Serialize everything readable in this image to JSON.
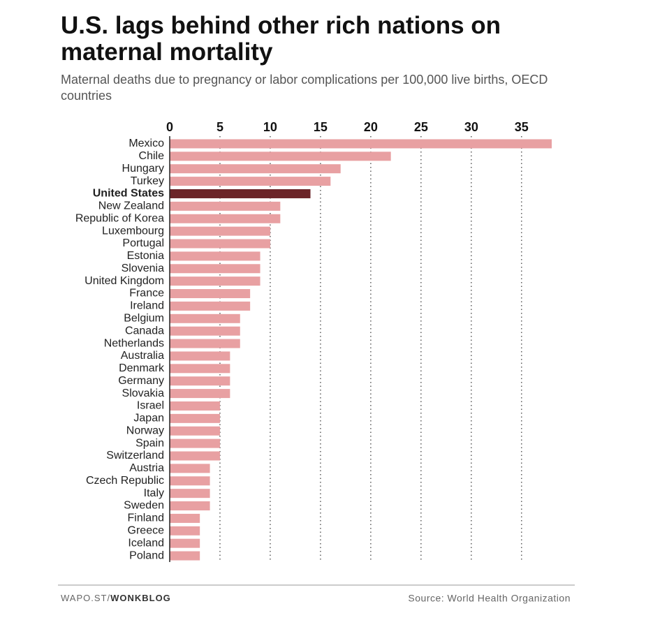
{
  "chart_data": {
    "type": "bar",
    "orientation": "horizontal",
    "title": "U.S. lags behind other rich nations on maternal mortality",
    "subtitle": "Maternal deaths due to pregnancy or labor complications per 100,000 live births, OECD countries",
    "categories": [
      "Mexico",
      "Chile",
      "Hungary",
      "Turkey",
      "United States",
      "New Zealand",
      "Republic of Korea",
      "Luxembourg",
      "Portugal",
      "Estonia",
      "Slovenia",
      "United Kingdom",
      "France",
      "Ireland",
      "Belgium",
      "Canada",
      "Netherlands",
      "Australia",
      "Denmark",
      "Germany",
      "Slovakia",
      "Israel",
      "Japan",
      "Norway",
      "Spain",
      "Switzerland",
      "Austria",
      "Czech Republic",
      "Italy",
      "Sweden",
      "Finland",
      "Greece",
      "Iceland",
      "Poland"
    ],
    "values": [
      38,
      22,
      17,
      16,
      14,
      11,
      11,
      10,
      10,
      9,
      9,
      9,
      8,
      8,
      7,
      7,
      7,
      6,
      6,
      6,
      6,
      5,
      5,
      5,
      5,
      5,
      4,
      4,
      4,
      4,
      3,
      3,
      3,
      3
    ],
    "color": "#e8a0a2",
    "colors": [
      "#e8a0a2",
      "#e8a0a2",
      "#e8a0a2",
      "#e8a0a2",
      "#6b2428",
      "#e8a0a2",
      "#e8a0a2",
      "#e8a0a2",
      "#e8a0a2",
      "#e8a0a2",
      "#e8a0a2",
      "#e8a0a2",
      "#e8a0a2",
      "#e8a0a2",
      "#e8a0a2",
      "#e8a0a2",
      "#e8a0a2",
      "#e8a0a2",
      "#e8a0a2",
      "#e8a0a2",
      "#e8a0a2",
      "#e8a0a2",
      "#e8a0a2",
      "#e8a0a2",
      "#e8a0a2",
      "#e8a0a2",
      "#e8a0a2",
      "#e8a0a2",
      "#e8a0a2",
      "#e8a0a2",
      "#e8a0a2",
      "#e8a0a2",
      "#e8a0a2",
      "#e8a0a2"
    ],
    "xlim": [
      0,
      38
    ],
    "xticks": [
      0,
      5,
      10,
      15,
      20,
      25,
      30,
      35
    ],
    "grid": true,
    "footer_site": "WAPO.ST/",
    "footer_blog": "WONKBLOG",
    "source": "Source: World Health Organization"
  }
}
